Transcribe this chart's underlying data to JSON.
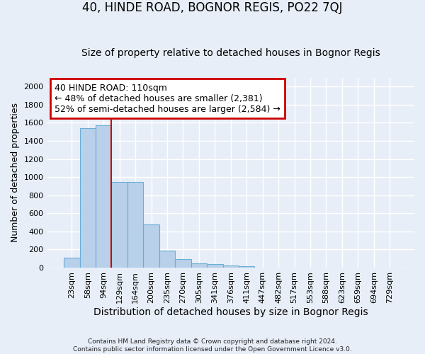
{
  "title": "40, HINDE ROAD, BOGNOR REGIS, PO22 7QJ",
  "subtitle": "Size of property relative to detached houses in Bognor Regis",
  "xlabel": "Distribution of detached houses by size in Bognor Regis",
  "ylabel": "Number of detached properties",
  "footer_line1": "Contains HM Land Registry data © Crown copyright and database right 2024.",
  "footer_line2": "Contains public sector information licensed under the Open Government Licence v3.0.",
  "bar_labels": [
    "23sqm",
    "58sqm",
    "94sqm",
    "129sqm",
    "164sqm",
    "200sqm",
    "235sqm",
    "270sqm",
    "305sqm",
    "341sqm",
    "376sqm",
    "411sqm",
    "447sqm",
    "482sqm",
    "517sqm",
    "553sqm",
    "588sqm",
    "623sqm",
    "659sqm",
    "694sqm",
    "729sqm"
  ],
  "bar_values": [
    110,
    1540,
    1570,
    950,
    950,
    480,
    185,
    95,
    45,
    35,
    25,
    15,
    0,
    0,
    0,
    0,
    0,
    0,
    0,
    0,
    0
  ],
  "bar_color": "#b8d0ea",
  "bar_edge_color": "#6aaed6",
  "vline_x_index": 2,
  "vline_color": "#cc0000",
  "annotation_line1": "40 HINDE ROAD: 110sqm",
  "annotation_line2": "← 48% of detached houses are smaller (2,381)",
  "annotation_line3": "52% of semi-detached houses are larger (2,584) →",
  "annotation_box_color": "white",
  "annotation_box_edge_color": "#cc0000",
  "ylim": [
    0,
    2100
  ],
  "yticks": [
    0,
    200,
    400,
    600,
    800,
    1000,
    1200,
    1400,
    1600,
    1800,
    2000
  ],
  "background_color": "#e8eef8",
  "plot_background_color": "#e8eef8",
  "grid_color": "white",
  "title_fontsize": 12,
  "subtitle_fontsize": 10,
  "annotation_fontsize": 9,
  "tick_fontsize": 8,
  "ylabel_fontsize": 9,
  "xlabel_fontsize": 10
}
